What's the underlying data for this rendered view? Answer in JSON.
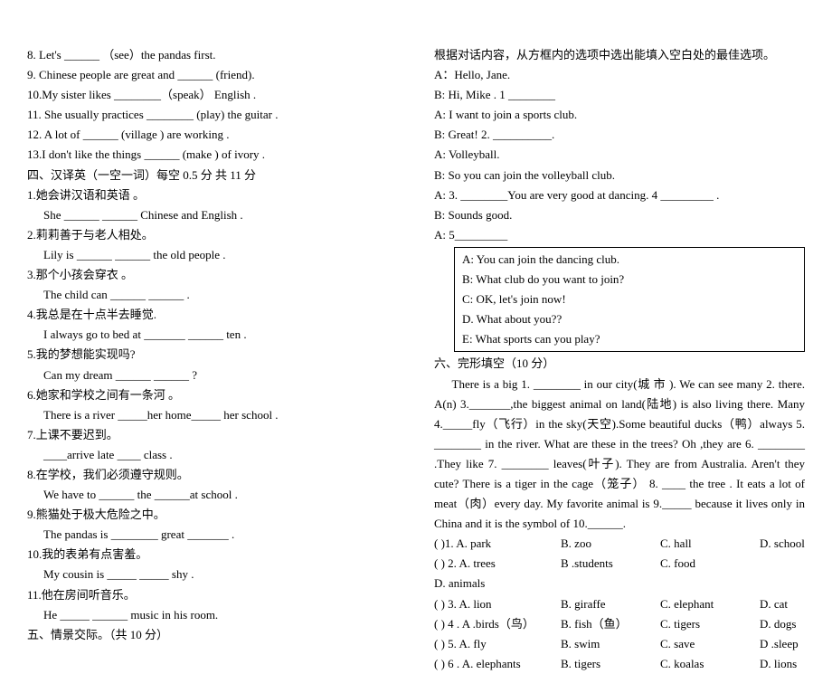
{
  "left": {
    "q8": "8. Let's ______ （see）the pandas first.",
    "q9": "9. Chinese people are great and ______ (friend).",
    "q10": "10.My sister likes ________（speak） English .",
    "q11": "11. She usually practices  ________  (play) the guitar .",
    "q12": "12. A lot of  ______ (village ) are working .",
    "q13": "13.I don't like the things  ______  (make ) of ivory .",
    "sec4_title": "四、汉译英（一空一词）每空 0.5  分  共 11 分",
    "t1_cn": "1.她会讲汉语和英语 。",
    "t1_en": "She  ______  ______  Chinese and English .",
    "t2_cn": "2.莉莉善于与老人相处。",
    "t2_en": "Lily is  ______  ______  the old people .",
    "t3_cn": "3.那个小孩会穿衣 。",
    "t3_en": "The child can  ______  ______ .",
    "t4_cn": "4.我总是在十点半去睡觉.",
    "t4_en": "I always go to bed at  _______  ______   ten .",
    "t5_cn": "5.我的梦想能实现吗?",
    "t5_en": "Can my dream  ______  ______  ?",
    "t6_cn": "6.她家和学校之间有一条河 。",
    "t6_en": "There is a river  _____her home_____  her school .",
    "t7_cn": "7.上课不要迟到。",
    "t7_en": "____arrive late  ____  class .",
    "t8_cn": "8.在学校，我们必须遵守规则。",
    "t8_en": "We have to  ______  the ______at school .",
    "t9_cn": "9.熊猫处于极大危险之中。",
    "t9_en": "The pandas is  ________  great  _______ .",
    "t10_cn": "10.我的表弟有点害羞。",
    "t10_en": "My cousin is   _____  _____  shy   .",
    "t11_cn": "11.他在房间听音乐。",
    "t11_en": "He  _____  ______  music in his room.",
    "sec5_title": "五、情景交际。（共 10 分）"
  },
  "right": {
    "dlg_intro": "根据对话内容，从方框内的选项中选出能填入空白处的最佳选项。",
    "d1": "A：Hello, Jane.",
    "d2": "B:    Hi, Mike . 1 ________",
    "d3": "A:    I want to join a sports club.",
    "d4": "B:    Great! 2. __________.",
    "d5": "A:    Volleyball.",
    "d6": "B:    So you can join the volleyball club.",
    "d7": "A:    3.  ________You are very good at dancing. 4  _________ .",
    "d8": "B:    Sounds good.",
    "d9": "A:    5_________",
    "boxA": "A: You can join the dancing club.",
    "boxB": "B: What club do you want to join?",
    "boxC": "C: OK, let's join now!",
    "boxD": "D. What about you??",
    "boxE": " E: What sports can you play?",
    "sec6_title": "六、完形填空（10 分）",
    "cloze": "There  is  a  big  1.   ________   in  our  city(城 市 ).  We  can  see  many  2. there. A(n) 3._______,the biggest animal on land(陆地) is also living there. Many 4._____fly（飞行）in the sky(天空).Some beautiful ducks（鸭）always 5.   ________   in  the  river.  What  are  these  in  the  trees?  Oh  ,they  are 6.  ________ .They like 7.  ________ leaves(叶子). They are from Australia. Aren't they cute?    There is a tiger in the cage（笼子）  8.  ____  the tree  .   It eats a lot of meat（肉）every day. My favorite animal is 9._____    because it lives only in China and it is the symbol of 10.______.",
    "opts": [
      {
        "n": "(      )1.",
        "a": "A. park",
        "b": "B. zoo",
        "c": "C. hall",
        "d": "D. school"
      },
      {
        "n": "(      ) 2.",
        "a": "A. trees",
        "b": "B .students",
        "c": "C. food",
        "d": "D. animals"
      },
      {
        "n": "(      ) 3.",
        "a": "A. lion",
        "b": "B. giraffe",
        "c": "C. elephant",
        "d": "D. cat"
      },
      {
        "n": "(      ) 4 .",
        "a": "A .birds（鸟）",
        "b": "B. fish（鱼）",
        "c": "C. tigers",
        "d": "D. dogs"
      },
      {
        "n": "(      ) 5.",
        "a": "A. fly",
        "b": "B. swim",
        "c": "C. save",
        "d": "D .sleep"
      },
      {
        "n": "(      ) 6 .",
        "a": "A. elephants",
        "b": "B. tigers",
        "c": "C. koalas",
        "d": "D. lions"
      }
    ]
  }
}
